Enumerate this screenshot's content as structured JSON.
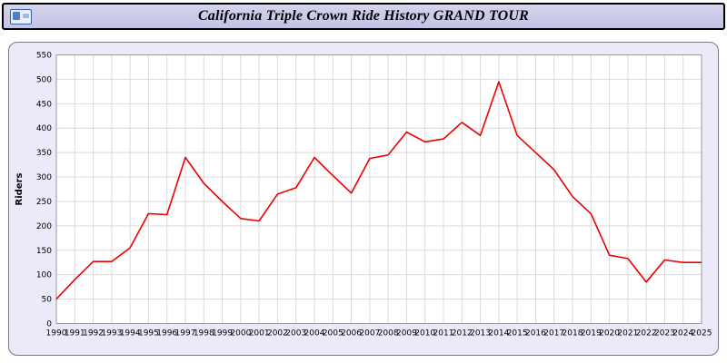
{
  "header": {
    "title": "California Triple Crown Ride History GRAND TOUR",
    "icon": "photo-icon"
  },
  "chart_data": {
    "type": "line",
    "title": "California Triple Crown Ride History GRAND TOUR",
    "xlabel": "",
    "ylabel": "Riders",
    "ylim": [
      0,
      550
    ],
    "ytick_step": 50,
    "grid": true,
    "legend": "none",
    "line_color": "#ee0000",
    "plot_bg": "#ffffff",
    "grid_color": "#d9d9d9",
    "axis_text_color": "#000000",
    "x": [
      1990,
      1991,
      1992,
      1993,
      1994,
      1995,
      1996,
      1997,
      1998,
      1999,
      2000,
      2001,
      2002,
      2003,
      2004,
      2005,
      2006,
      2007,
      2008,
      2009,
      2010,
      2011,
      2012,
      2013,
      2014,
      2015,
      2016,
      2017,
      2018,
      2019,
      2020,
      2021,
      2022,
      2023,
      2024,
      2025
    ],
    "series": [
      {
        "name": "Riders",
        "values": [
          50,
          90,
          127,
          127,
          155,
          225,
          223,
          340,
          287,
          250,
          215,
          210,
          265,
          278,
          340,
          303,
          267,
          338,
          345,
          392,
          372,
          378,
          412,
          385,
          495,
          385,
          350,
          315,
          260,
          225,
          140,
          133,
          85,
          130,
          125,
          125
        ]
      }
    ]
  }
}
